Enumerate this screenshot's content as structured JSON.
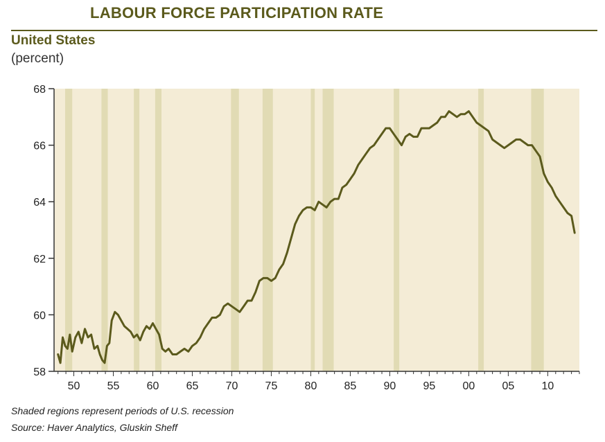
{
  "header": {
    "title": "LABOUR FORCE PARTICIPATION RATE",
    "subtitle": "United States",
    "unit": "(percent)"
  },
  "notes": {
    "recession_note": "Shaded regions represent periods of U.S. recession",
    "source": "Source: Haver Analytics, Gluskin Sheff"
  },
  "colors": {
    "line": "#5b5a1c",
    "plot_bg": "#f4ecd6",
    "recession": "#e1dbb4",
    "text_accent": "#5b5a1c"
  },
  "chart_data": {
    "type": "line",
    "title": "LABOUR FORCE PARTICIPATION RATE",
    "subtitle": "United States",
    "ylabel": "(percent)",
    "xlabel": "",
    "xlim": [
      1947.5,
      2014.0
    ],
    "ylim": [
      58,
      68
    ],
    "yticks": [
      58,
      60,
      62,
      64,
      66,
      68
    ],
    "xticks": [
      {
        "year": 1950,
        "label": "50"
      },
      {
        "year": 1955,
        "label": "55"
      },
      {
        "year": 1960,
        "label": "60"
      },
      {
        "year": 1965,
        "label": "65"
      },
      {
        "year": 1970,
        "label": "70"
      },
      {
        "year": 1975,
        "label": "75"
      },
      {
        "year": 1980,
        "label": "80"
      },
      {
        "year": 1985,
        "label": "85"
      },
      {
        "year": 1990,
        "label": "90"
      },
      {
        "year": 1995,
        "label": "95"
      },
      {
        "year": 2000,
        "label": "00"
      },
      {
        "year": 2005,
        "label": "05"
      },
      {
        "year": 2010,
        "label": "10"
      }
    ],
    "grid": false,
    "recessions": [
      [
        1948.9,
        1949.8
      ],
      [
        1953.5,
        1954.3
      ],
      [
        1957.6,
        1958.3
      ],
      [
        1960.3,
        1961.1
      ],
      [
        1969.9,
        1970.9
      ],
      [
        1973.9,
        1975.2
      ],
      [
        1980.0,
        1980.5
      ],
      [
        1981.5,
        1982.9
      ],
      [
        1990.5,
        1991.2
      ],
      [
        2001.2,
        2001.9
      ],
      [
        2007.9,
        2009.5
      ]
    ],
    "series": [
      {
        "x": [
          1948.0,
          1948.3,
          1948.6,
          1948.9,
          1949.2,
          1949.5,
          1949.8,
          1950.2,
          1950.6,
          1951.0,
          1951.4,
          1951.8,
          1952.2,
          1952.6,
          1953.0,
          1953.3,
          1953.6,
          1953.9,
          1954.2,
          1954.5,
          1954.8,
          1955.2,
          1955.6,
          1956.0,
          1956.4,
          1956.8,
          1957.2,
          1957.6,
          1958.0,
          1958.4,
          1958.8,
          1959.2,
          1959.6,
          1960.0,
          1960.4,
          1960.8,
          1961.2,
          1961.6,
          1962.0,
          1962.5,
          1963.0,
          1963.5,
          1964.0,
          1964.5,
          1965.0,
          1965.5,
          1966.0,
          1966.5,
          1967.0,
          1967.5,
          1968.0,
          1968.5,
          1969.0,
          1969.5,
          1970.0,
          1970.5,
          1971.0,
          1971.5,
          1972.0,
          1972.5,
          1973.0,
          1973.5,
          1974.0,
          1974.5,
          1975.0,
          1975.5,
          1976.0,
          1976.5,
          1977.0,
          1977.5,
          1978.0,
          1978.5,
          1979.0,
          1979.5,
          1980.0,
          1980.5,
          1981.0,
          1981.5,
          1982.0,
          1982.5,
          1983.0,
          1983.5,
          1984.0,
          1984.5,
          1985.0,
          1985.5,
          1986.0,
          1986.5,
          1987.0,
          1987.5,
          1988.0,
          1988.5,
          1989.0,
          1989.5,
          1990.0,
          1990.5,
          1991.0,
          1991.5,
          1992.0,
          1992.5,
          1993.0,
          1993.5,
          1994.0,
          1994.5,
          1995.0,
          1995.5,
          1996.0,
          1996.5,
          1997.0,
          1997.5,
          1998.0,
          1998.5,
          1999.0,
          1999.5,
          2000.0,
          2000.5,
          2001.0,
          2001.5,
          2002.0,
          2002.5,
          2003.0,
          2003.5,
          2004.0,
          2004.5,
          2005.0,
          2005.5,
          2006.0,
          2006.5,
          2007.0,
          2007.5,
          2008.0,
          2008.5,
          2009.0,
          2009.5,
          2010.0,
          2010.5,
          2011.0,
          2011.5,
          2012.0,
          2012.5,
          2013.0,
          2013.4
        ],
        "values": [
          58.6,
          58.3,
          59.2,
          58.9,
          58.8,
          59.3,
          58.7,
          59.2,
          59.4,
          59.0,
          59.5,
          59.2,
          59.3,
          58.8,
          58.9,
          58.6,
          58.4,
          58.3,
          58.9,
          59.0,
          59.8,
          60.1,
          60.0,
          59.8,
          59.6,
          59.5,
          59.4,
          59.2,
          59.3,
          59.1,
          59.4,
          59.6,
          59.5,
          59.7,
          59.5,
          59.3,
          58.8,
          58.7,
          58.8,
          58.6,
          58.6,
          58.7,
          58.8,
          58.7,
          58.9,
          59.0,
          59.2,
          59.5,
          59.7,
          59.9,
          59.9,
          60.0,
          60.3,
          60.4,
          60.3,
          60.2,
          60.1,
          60.3,
          60.5,
          60.5,
          60.8,
          61.2,
          61.3,
          61.3,
          61.2,
          61.3,
          61.6,
          61.8,
          62.2,
          62.7,
          63.2,
          63.5,
          63.7,
          63.8,
          63.8,
          63.7,
          64.0,
          63.9,
          63.8,
          64.0,
          64.1,
          64.1,
          64.5,
          64.6,
          64.8,
          65.0,
          65.3,
          65.5,
          65.7,
          65.9,
          66.0,
          66.2,
          66.4,
          66.6,
          66.6,
          66.4,
          66.2,
          66.0,
          66.3,
          66.4,
          66.3,
          66.3,
          66.6,
          66.6,
          66.6,
          66.7,
          66.8,
          67.0,
          67.0,
          67.2,
          67.1,
          67.0,
          67.1,
          67.1,
          67.2,
          67.0,
          66.8,
          66.7,
          66.6,
          66.5,
          66.2,
          66.1,
          66.0,
          65.9,
          66.0,
          66.1,
          66.2,
          66.2,
          66.1,
          66.0,
          66.0,
          65.8,
          65.6,
          65.0,
          64.7,
          64.5,
          64.2,
          64.0,
          63.8,
          63.6,
          63.5,
          62.9
        ]
      }
    ]
  }
}
